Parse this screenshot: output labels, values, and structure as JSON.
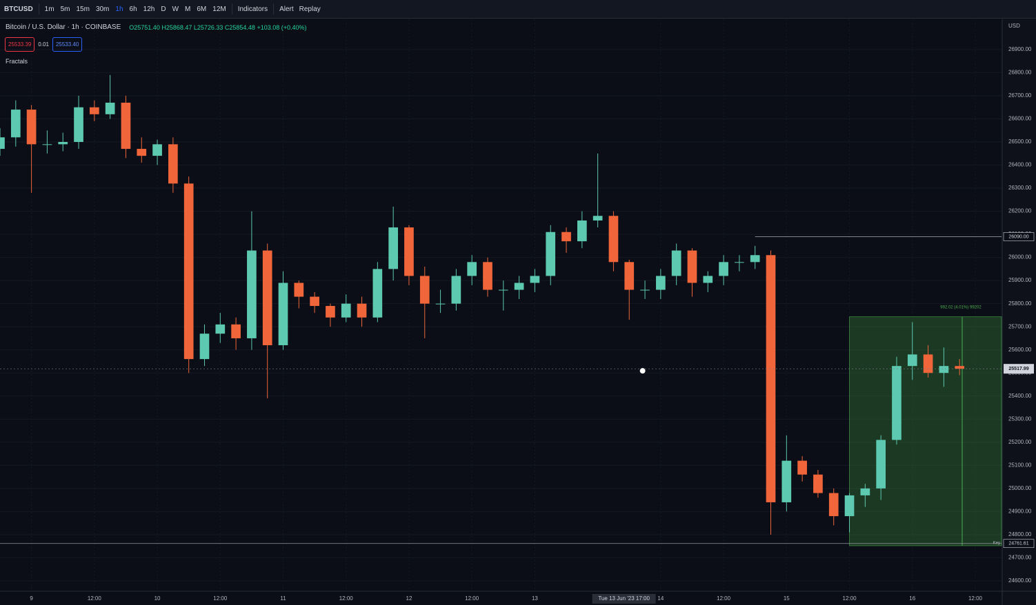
{
  "toolbar": {
    "symbol": "BTCUSD",
    "intervals": [
      "1m",
      "5m",
      "15m",
      "30m",
      "1h",
      "6h",
      "12h",
      "D",
      "W",
      "M",
      "6M",
      "12M"
    ],
    "indicators": "Indicators",
    "alert": "Alert",
    "replay": "Replay"
  },
  "legend": {
    "title": "Bitcoin / U.S. Dollar · 1h · COINBASE",
    "ohlc": "O25751.40 H25868.47 L25726.33 C25854.48 +103.08 (+0.40%)",
    "bid": "25533.39",
    "spread": "0.01",
    "ask": "25533.40",
    "indicator": "Fractals"
  },
  "chart_data": {
    "type": "candlestick",
    "currency": "USD",
    "up_color": "#5cc9b0",
    "down_color": "#f0663a",
    "x": [
      -6,
      -3,
      0,
      3,
      6,
      9,
      12,
      15,
      18,
      21,
      24,
      27,
      30,
      33,
      36,
      39,
      42,
      45,
      48,
      51,
      54,
      57,
      60,
      63,
      66,
      69,
      72,
      75,
      78,
      81,
      84,
      87,
      90,
      93,
      96,
      99,
      102,
      105,
      108,
      111,
      114,
      117,
      120,
      123,
      126,
      129,
      132,
      135,
      138,
      141,
      144,
      147,
      150,
      153,
      156,
      159,
      162,
      165,
      168,
      171,
      174,
      177
    ],
    "open": [
      26470,
      26520,
      26640,
      26490,
      26490,
      26500,
      26650,
      26620,
      26670,
      26470,
      26440,
      26490,
      26320,
      25560,
      25670,
      25710,
      25650,
      26030,
      25620,
      25890,
      25830,
      25790,
      25740,
      25800,
      25740,
      25950,
      26130,
      25920,
      25800,
      25800,
      25920,
      25980,
      25860,
      25860,
      25890,
      25920,
      26110,
      26070,
      26160,
      26180,
      25980,
      25860,
      25860,
      25920,
      26030,
      25890,
      25920,
      25980,
      25980,
      26010,
      24940,
      25120,
      25060,
      24980,
      24880,
      24970,
      25000,
      25210,
      25530,
      25580,
      25500,
      25530
    ],
    "high": [
      26560,
      26680,
      26660,
      26550,
      26540,
      26700,
      26680,
      26790,
      26700,
      26520,
      26510,
      26520,
      26350,
      25710,
      25760,
      25740,
      26200,
      26060,
      25940,
      25900,
      25850,
      25800,
      25840,
      25830,
      25980,
      26220,
      26140,
      25960,
      25860,
      25950,
      26010,
      26000,
      25900,
      25920,
      25950,
      26140,
      26130,
      26200,
      26450,
      26200,
      25990,
      25900,
      25950,
      26060,
      26040,
      25940,
      26010,
      26010,
      26050,
      26030,
      25230,
      25140,
      25080,
      25000,
      24980,
      25020,
      25230,
      25570,
      25720,
      25620,
      25610,
      25560
    ],
    "low": [
      26440,
      26480,
      26280,
      26450,
      26460,
      26470,
      26590,
      26600,
      26430,
      26410,
      26400,
      26280,
      25500,
      25530,
      25630,
      25600,
      25600,
      25390,
      25600,
      25780,
      25760,
      25700,
      25720,
      25700,
      25720,
      25900,
      25880,
      25650,
      25760,
      25770,
      25880,
      25830,
      25770,
      25820,
      25850,
      25880,
      26020,
      26040,
      26130,
      25940,
      25730,
      25820,
      25820,
      25880,
      25830,
      25850,
      25880,
      25940,
      25950,
      24800,
      24900,
      25030,
      24960,
      24840,
      24810,
      24920,
      24950,
      25190,
      25470,
      25480,
      25440,
      25490
    ],
    "close": [
      26520,
      26640,
      26490,
      26490,
      26500,
      26650,
      26620,
      26670,
      26470,
      26440,
      26490,
      26320,
      25560,
      25670,
      25710,
      25650,
      26030,
      25620,
      25890,
      25830,
      25790,
      25740,
      25800,
      25740,
      25950,
      26130,
      25920,
      25800,
      25800,
      25920,
      25980,
      25860,
      25860,
      25890,
      25920,
      26110,
      26070,
      26160,
      26180,
      25980,
      25860,
      25860,
      25920,
      26030,
      25890,
      25920,
      25980,
      25980,
      26010,
      24940,
      25120,
      25060,
      24980,
      24880,
      24970,
      25000,
      25210,
      25530,
      25580,
      25500,
      25530,
      25518
    ],
    "xlim": [
      -6,
      185
    ],
    "ylim": [
      24555,
      27031
    ],
    "xticks": [
      {
        "value": 0,
        "label": "9"
      },
      {
        "value": 12,
        "label": "12:00"
      },
      {
        "value": 24,
        "label": "10"
      },
      {
        "value": 36,
        "label": "12:00"
      },
      {
        "value": 48,
        "label": "11"
      },
      {
        "value": 60,
        "label": "12:00"
      },
      {
        "value": 72,
        "label": "12"
      },
      {
        "value": 84,
        "label": "12:00"
      },
      {
        "value": 96,
        "label": "13"
      },
      {
        "value": 120,
        "label": "14"
      },
      {
        "value": 132,
        "label": "12:00"
      },
      {
        "value": 144,
        "label": "15"
      },
      {
        "value": 156,
        "label": "12:00"
      },
      {
        "value": 168,
        "label": "16"
      },
      {
        "value": 180,
        "label": "12:00"
      }
    ],
    "yticks": [
      {
        "value": 24600,
        "label": "24600.00"
      },
      {
        "value": 24700,
        "label": "24700.00"
      },
      {
        "value": 24800,
        "label": "24800.00"
      },
      {
        "value": 24900,
        "label": "24900.00"
      },
      {
        "value": 25000,
        "label": "25000.00"
      },
      {
        "value": 25100,
        "label": "25100.00"
      },
      {
        "value": 25200,
        "label": "25200.00"
      },
      {
        "value": 25300,
        "label": "25300.00"
      },
      {
        "value": 25400,
        "label": "25400.00"
      },
      {
        "value": 25500,
        "label": "25500.00"
      },
      {
        "value": 25600,
        "label": "25600.00"
      },
      {
        "value": 25700,
        "label": "25700.00"
      },
      {
        "value": 25800,
        "label": "25800.00"
      },
      {
        "value": 25900,
        "label": "25900.00"
      },
      {
        "value": 26000,
        "label": "26000.00"
      },
      {
        "value": 26100,
        "label": "26100.00"
      },
      {
        "value": 26200,
        "label": "26200.00"
      },
      {
        "value": 26300,
        "label": "26300.00"
      },
      {
        "value": 26400,
        "label": "26400.00"
      },
      {
        "value": 26500,
        "label": "26500.00"
      },
      {
        "value": 26600,
        "label": "26600.00"
      },
      {
        "value": 26700,
        "label": "26700.00"
      },
      {
        "value": 26800,
        "label": "26800.00"
      },
      {
        "value": 26900,
        "label": "26900.00"
      }
    ],
    "crosshair": {
      "x": {
        "value": 113,
        "label": "Tue 13 Jun '23  17:00"
      },
      "y": {
        "value": 25518,
        "label": "25517.99"
      }
    },
    "hlines": [
      {
        "value": 26090,
        "label": "26090.00",
        "x_start": 138
      },
      {
        "value": 24761.61,
        "label": "24761.61",
        "tag": "Key",
        "x_start": -6
      }
    ],
    "position": {
      "top": 25743,
      "bottom": 24752,
      "x_start": 156,
      "x_end": 185,
      "x_mark": 177.5,
      "label": "992.02 (4.01%) 99202"
    }
  }
}
